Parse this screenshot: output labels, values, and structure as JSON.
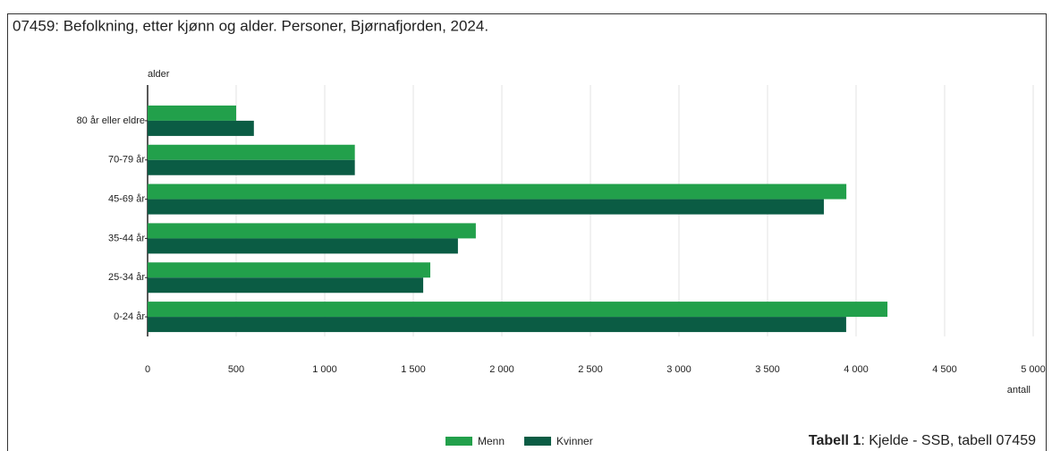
{
  "chart_data": {
    "type": "bar",
    "orientation": "horizontal",
    "title": "07459: Befolkning, etter kjønn og alder. Personer, Bjørnafjorden, 2024.",
    "y_label": "alder",
    "x_label": "antall",
    "categories": [
      "80 år eller eldre",
      "70-79 år",
      "45-69 år",
      "35-44 år",
      "25-34 år",
      "0-24 år"
    ],
    "series": [
      {
        "name": "Menn",
        "color": "#22a04b",
        "values": [
          500,
          1170,
          3945,
          1853,
          1596,
          4177
        ]
      },
      {
        "name": "Kvinner",
        "color": "#0b5c44",
        "values": [
          600,
          1170,
          3818,
          1752,
          1556,
          3944
        ]
      }
    ],
    "xlim": [
      0,
      5000
    ],
    "xticks": [
      0,
      500,
      {
        "value": 1000,
        "label": "1 000"
      },
      {
        "value": 1500,
        "label": "1 500"
      },
      {
        "value": 2000,
        "label": "2 000"
      },
      {
        "value": 2500,
        "label": "2 500"
      },
      {
        "value": 3000,
        "label": "3 000"
      },
      {
        "value": 3500,
        "label": "3 500"
      },
      {
        "value": 4000,
        "label": "4 000"
      },
      {
        "value": 4500,
        "label": "4 500"
      },
      {
        "value": 5000,
        "label": "5 000"
      }
    ],
    "grid": true,
    "legend": "bottom"
  },
  "caption": {
    "label": "Tabell 1",
    "text": ": Kjelde - SSB, tabell 07459"
  }
}
